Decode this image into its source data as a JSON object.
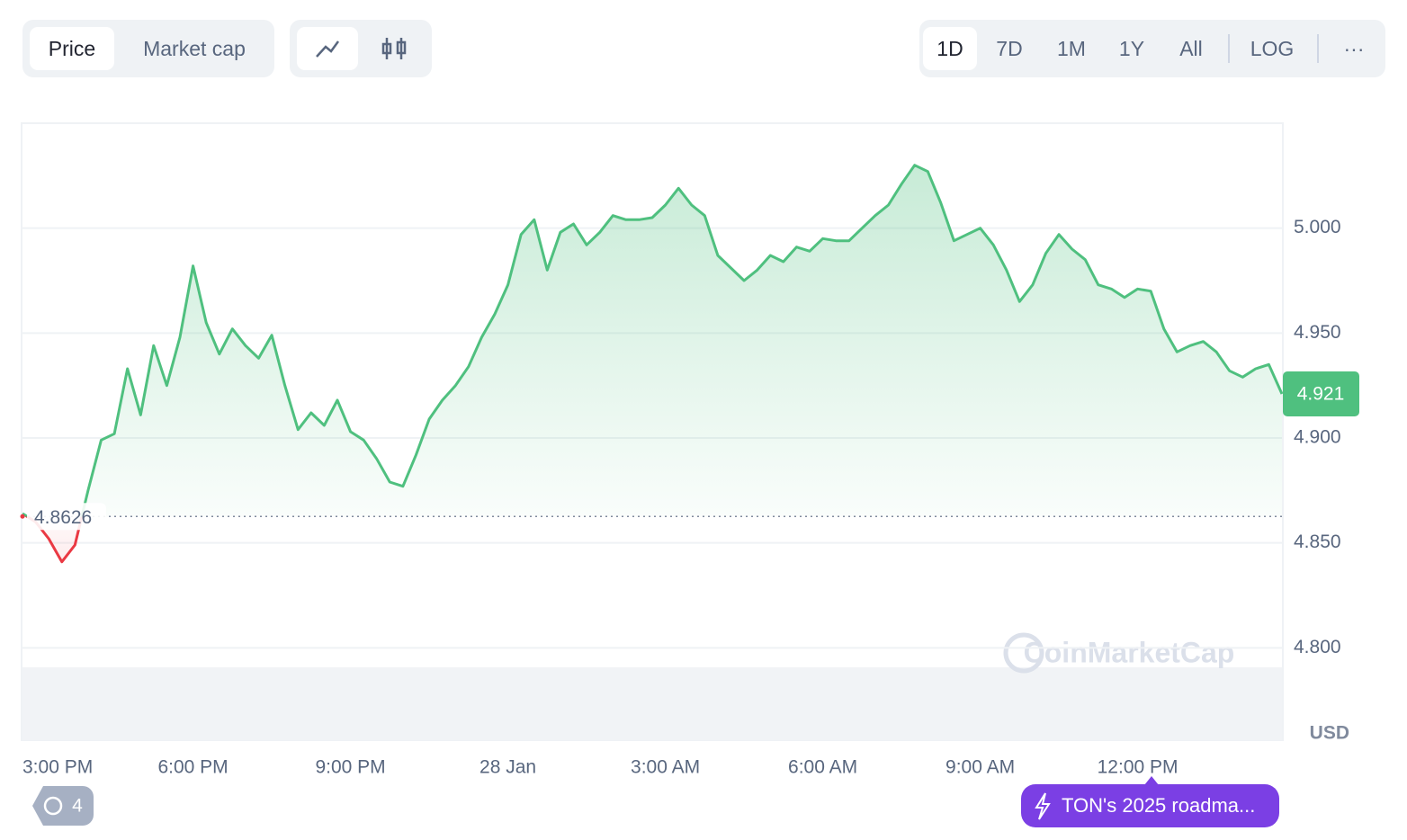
{
  "ui": {
    "metric_tabs": [
      "Price",
      "Market cap"
    ],
    "ranges": [
      "1D",
      "7D",
      "1M",
      "1Y",
      "All"
    ],
    "log": "LOG",
    "more": "···",
    "history_count": "4",
    "news": "TON's 2025 roadma..."
  },
  "chart_data": {
    "type": "line",
    "watermark": "CoinMarketCap",
    "y_unit": "USD",
    "line_color": "#4fc07f",
    "below_color": "#ea3943",
    "reference_price": 4.8626,
    "current_price": 4.921,
    "categories": [
      null,
      "3:00 PM",
      null,
      null,
      null,
      null,
      null,
      null,
      null,
      null,
      null,
      null,
      null,
      "6:00 PM",
      null,
      null,
      null,
      null,
      null,
      null,
      null,
      null,
      null,
      null,
      null,
      "9:00 PM",
      null,
      null,
      null,
      null,
      null,
      null,
      null,
      null,
      null,
      null,
      null,
      "28 Jan",
      null,
      null,
      null,
      null,
      null,
      null,
      null,
      null,
      null,
      null,
      null,
      "3:00 AM",
      null,
      null,
      null,
      null,
      null,
      null,
      null,
      null,
      null,
      null,
      null,
      "6:00 AM",
      null,
      null,
      null,
      null,
      null,
      null,
      null,
      null,
      null,
      null,
      null,
      "9:00 AM",
      null,
      null,
      null,
      null,
      null,
      null,
      null,
      null,
      null,
      null,
      null,
      "12:00 PM",
      null,
      null,
      null,
      null,
      null,
      null,
      null,
      null,
      null,
      null,
      null
    ],
    "values": [
      4.864,
      4.86,
      4.852,
      4.841,
      4.849,
      4.875,
      4.899,
      4.902,
      4.933,
      4.911,
      4.944,
      4.925,
      4.948,
      4.982,
      4.955,
      4.94,
      4.952,
      4.944,
      4.938,
      4.949,
      4.925,
      4.904,
      4.912,
      4.906,
      4.918,
      4.903,
      4.899,
      4.89,
      4.879,
      4.877,
      4.892,
      4.909,
      4.918,
      4.925,
      4.934,
      4.948,
      4.959,
      4.973,
      4.997,
      5.004,
      4.98,
      4.998,
      5.002,
      4.992,
      4.998,
      5.006,
      5.004,
      5.004,
      5.005,
      5.011,
      5.019,
      5.011,
      5.006,
      4.987,
      4.981,
      4.975,
      4.98,
      4.987,
      4.984,
      4.991,
      4.989,
      4.995,
      4.994,
      4.994,
      5.0,
      5.006,
      5.011,
      5.021,
      5.03,
      5.027,
      5.012,
      4.994,
      4.997,
      5.0,
      4.992,
      4.98,
      4.965,
      4.973,
      4.988,
      4.997,
      4.99,
      4.985,
      4.973,
      4.971,
      4.967,
      4.971,
      4.97,
      4.952,
      4.941,
      4.944,
      4.946,
      4.941,
      4.932,
      4.929,
      4.933,
      4.935,
      4.921
    ],
    "ylim": [
      4.756,
      5.05
    ],
    "yticks": [
      {
        "value": 4.8,
        "label": "4.800"
      },
      {
        "value": 4.85,
        "label": "4.850"
      },
      {
        "value": 4.9,
        "label": "4.900"
      },
      {
        "value": 4.95,
        "label": "4.950"
      },
      {
        "value": 5,
        "label": "5.000"
      }
    ],
    "grid": true
  }
}
